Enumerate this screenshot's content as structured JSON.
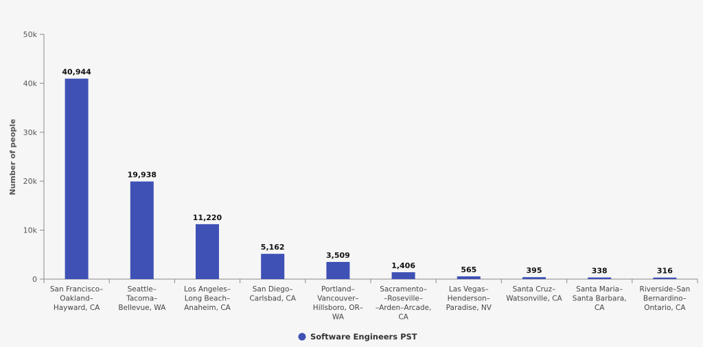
{
  "chart_data": {
    "type": "bar",
    "ylabel": "Number of people",
    "ylim": [
      0,
      50000
    ],
    "yticks": [
      0,
      10000,
      20000,
      30000,
      40000,
      50000
    ],
    "ytick_labels": [
      "0",
      "10k",
      "20k",
      "30k",
      "40k",
      "50k"
    ],
    "grid": false,
    "legend_position": "bottom-center",
    "categories": [
      [
        "San Francisco–",
        "Oakland–",
        "Hayward, CA"
      ],
      [
        "Seattle–",
        "Tacoma–",
        "Bellevue, WA"
      ],
      [
        "Los Angeles–",
        "Long Beach–",
        "Anaheim, CA"
      ],
      [
        "San Diego–",
        "Carlsbad, CA"
      ],
      [
        "Portland–",
        "Vancouver–",
        "Hillsboro, OR–",
        "WA"
      ],
      [
        "Sacramento–",
        "–Roseville–",
        "–Arden–Arcade,",
        "CA"
      ],
      [
        "Las Vegas–",
        "Henderson–",
        "Paradise, NV"
      ],
      [
        "Santa Cruz–",
        "Watsonville, CA"
      ],
      [
        "Santa Maria–",
        "Santa Barbara,",
        "CA"
      ],
      [
        "Riverside–San",
        "Bernardino–",
        "Ontario, CA"
      ]
    ],
    "series": [
      {
        "name": "Software Engineers PST",
        "color": "#3f51b5",
        "values": [
          40944,
          19938,
          11220,
          5162,
          3509,
          1406,
          565,
          395,
          338,
          316
        ],
        "value_labels": [
          "40,944",
          "19,938",
          "11,220",
          "5,162",
          "3,509",
          "1,406",
          "565",
          "395",
          "338",
          "316"
        ]
      }
    ]
  }
}
